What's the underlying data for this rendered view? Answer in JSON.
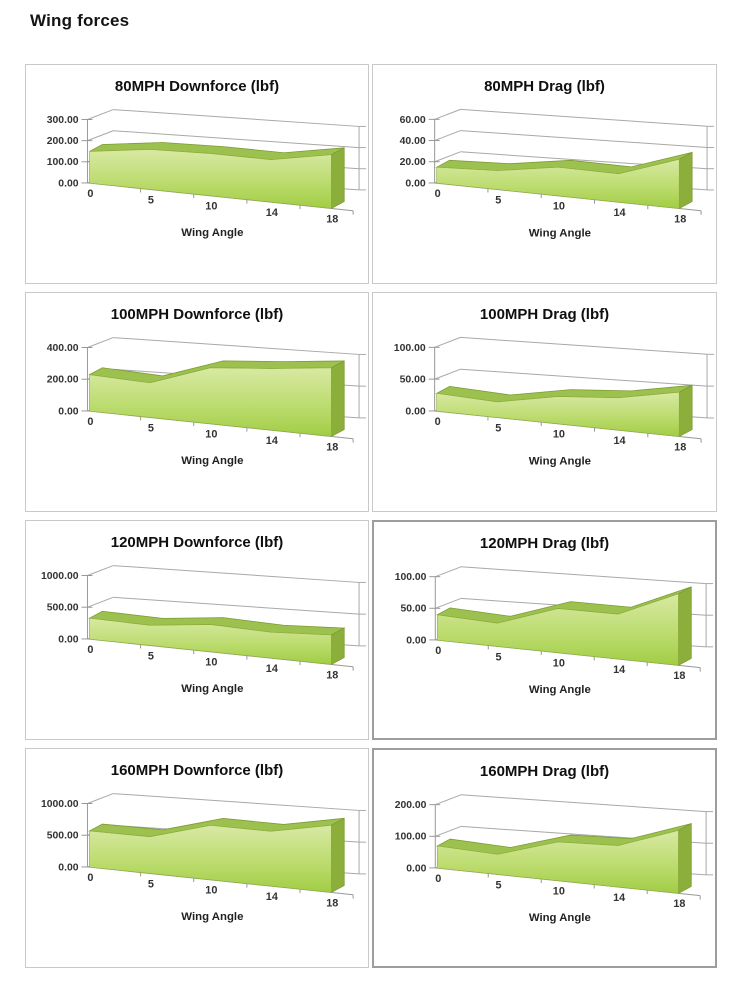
{
  "page": {
    "heading": "Wing forces"
  },
  "axis_title": "Wing Angle",
  "colors": {
    "area_gradient_top": "#d8e9a3",
    "area_gradient_mid": "#bcdc6f",
    "area_gradient_bottom": "#a2cd45",
    "area_ribbon": "#9dc14e",
    "area_end_cap": "#8caf3c",
    "area_edge": "#7d9c33",
    "gridline": "#a8a8a8",
    "axis_line": "#979797",
    "box_border": "#c9c9c9"
  },
  "chart_data": [
    {
      "type": "area",
      "title": "80MPH Downforce (lbf)",
      "xlabel": "Wing Angle",
      "categories": [
        0,
        5,
        10,
        14,
        18
      ],
      "values": [
        150,
        170,
        163,
        150,
        175
      ],
      "ylim": [
        0,
        300
      ],
      "yticks": [
        "300.00",
        "200.00",
        "100.00",
        "0.00"
      ],
      "grid": true,
      "legend": false,
      "style": "excel-3d-area-green"
    },
    {
      "type": "area",
      "title": "80MPH Drag (lbf)",
      "xlabel": "Wing Angle",
      "categories": [
        0,
        5,
        10,
        14,
        18
      ],
      "values": [
        15,
        16,
        22,
        20,
        32
      ],
      "ylim": [
        0,
        60
      ],
      "yticks": [
        "60.00",
        "40.00",
        "20.00",
        "0.00"
      ],
      "grid": true,
      "legend": false,
      "style": "excel-3d-area-green"
    },
    {
      "type": "area",
      "title": "100MPH Downforce (lbf)",
      "xlabel": "Wing Angle",
      "categories": [
        0,
        5,
        10,
        14,
        18
      ],
      "values": [
        230,
        196,
        288,
        290,
        298
      ],
      "ylim": [
        0,
        400
      ],
      "yticks": [
        "400.00",
        "200.00",
        "0.00"
      ],
      "grid": true,
      "legend": false,
      "style": "excel-3d-area-green"
    },
    {
      "type": "area",
      "title": "100MPH Drag (lbf)",
      "xlabel": "Wing Angle",
      "categories": [
        0,
        5,
        10,
        14,
        18
      ],
      "values": [
        28,
        22,
        35,
        38,
        48
      ],
      "ylim": [
        0,
        100
      ],
      "yticks": [
        "100.00",
        "50.00",
        "0.00"
      ],
      "grid": true,
      "legend": false,
      "style": "excel-3d-area-green"
    },
    {
      "type": "area",
      "title": "120MPH Downforce (lbf)",
      "xlabel": "Wing Angle",
      "categories": [
        0,
        5,
        10,
        14,
        18
      ],
      "values": [
        330,
        285,
        350,
        305,
        320
      ],
      "ylim": [
        0,
        1000
      ],
      "yticks": [
        "1000.00",
        "500.00",
        "0.00"
      ],
      "grid": true,
      "legend": false,
      "style": "excel-3d-area-green"
    },
    {
      "type": "area",
      "title": "120MPH Drag (lbf)",
      "xlabel": "Wing Angle",
      "categories": [
        0,
        5,
        10,
        14,
        18
      ],
      "values": [
        40,
        33,
        57,
        53,
        78
      ],
      "ylim": [
        0,
        100
      ],
      "yticks": [
        "100.00",
        "50.00",
        "0.00"
      ],
      "grid": true,
      "legend": false,
      "style": "excel-3d-area-green"
    },
    {
      "type": "area",
      "title": "160MPH Downforce (lbf)",
      "xlabel": "Wing Angle",
      "categories": [
        0,
        5,
        10,
        14,
        18
      ],
      "values": [
        570,
        520,
        700,
        645,
        730
      ],
      "ylim": [
        0,
        1000
      ],
      "yticks": [
        "1000.00",
        "500.00",
        "0.00"
      ],
      "grid": true,
      "legend": false,
      "style": "excel-3d-area-green"
    },
    {
      "type": "area",
      "title": "160MPH Drag (lbf)",
      "xlabel": "Wing Angle",
      "categories": [
        0,
        5,
        10,
        14,
        18
      ],
      "values": [
        70,
        57,
        100,
        98,
        137
      ],
      "ylim": [
        0,
        200
      ],
      "yticks": [
        "200.00",
        "100.00",
        "0.00"
      ],
      "grid": true,
      "legend": false,
      "style": "excel-3d-area-green"
    }
  ]
}
